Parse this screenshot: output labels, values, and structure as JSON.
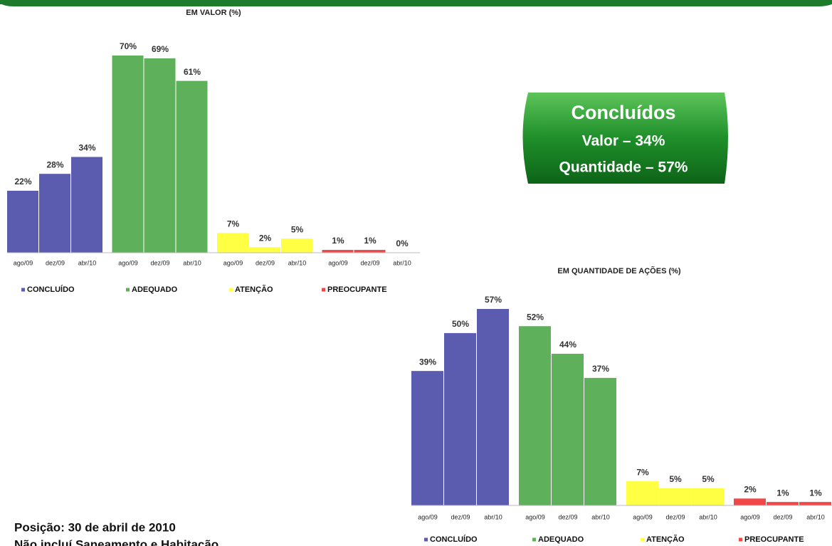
{
  "chart_data": [
    {
      "type": "bar",
      "title": "EM VALOR (%)",
      "categories": [
        "ago/09",
        "dez/09",
        "abr/10"
      ],
      "series": [
        {
          "name": "CONCLUÍDO",
          "color": "#5b5bb0",
          "values": [
            22,
            28,
            34
          ],
          "value_labels": [
            "22%",
            "28%",
            "34%"
          ]
        },
        {
          "name": "ADEQUADO",
          "color": "#5fb05a",
          "values": [
            70,
            69,
            61
          ],
          "value_labels": [
            "70%",
            "69%",
            "61%"
          ]
        },
        {
          "name": "ATENÇÃO",
          "color": "#ffff44",
          "values": [
            7,
            2,
            5
          ],
          "value_labels": [
            "7%",
            "2%",
            "5%"
          ]
        },
        {
          "name": "PREOCUPANTE",
          "color": "#f04848",
          "values": [
            1,
            1,
            0
          ],
          "value_labels": [
            "1%",
            "1%",
            "0%"
          ]
        }
      ]
    },
    {
      "type": "bar",
      "title": "EM QUANTIDADE DE AÇÕES (%)",
      "categories": [
        "ago/09",
        "dez/09",
        "abr/10"
      ],
      "series": [
        {
          "name": "CONCLUÍDO",
          "color": "#5b5bb0",
          "values": [
            39,
            50,
            57
          ],
          "value_labels": [
            "39%",
            "50%",
            "57%"
          ]
        },
        {
          "name": "ADEQUADO",
          "color": "#5fb05a",
          "values": [
            52,
            44,
            37
          ],
          "value_labels": [
            "52%",
            "44%",
            "37%"
          ]
        },
        {
          "name": "ATENÇÃO",
          "color": "#ffff44",
          "values": [
            7,
            5,
            5
          ],
          "value_labels": [
            "7%",
            "5%",
            "5%"
          ]
        },
        {
          "name": "PREOCUPANTE",
          "color": "#f04848",
          "values": [
            2,
            1,
            1
          ],
          "value_labels": [
            "2%",
            "1%",
            "1%"
          ]
        }
      ]
    }
  ],
  "callout": {
    "title": "Concluídos",
    "lines": [
      "Valor – 34%",
      "Quantidade – 57%"
    ]
  },
  "footer": [
    "Posição: 30 de abril de 2010",
    "Não incluí Saneamento e Habitação"
  ]
}
